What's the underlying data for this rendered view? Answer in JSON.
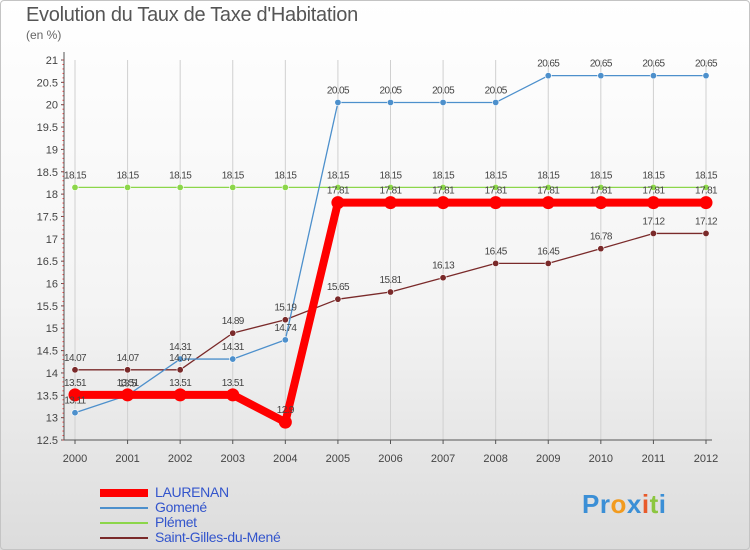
{
  "header": {
    "title": "Evolution du Taux de Taxe d'Habitation",
    "unit": "(en %)"
  },
  "logo": {
    "text": "Proxiti",
    "letters": [
      "P",
      "r",
      "o",
      "x",
      "i",
      "t",
      "i"
    ],
    "letter_colors": [
      "#3b8fd6",
      "#3b8fd6",
      "#f29b1f",
      "#3b8fd6",
      "#e85a2a",
      "#8cc63f",
      "#3b8fd6"
    ]
  },
  "colors": {
    "grid": "#d0d0d0",
    "axis": "#555555",
    "legend_text": "#3355cc"
  },
  "chart_data": {
    "type": "line",
    "title": "Evolution du Taux de Taxe d'Habitation",
    "ylabel": "(en %)",
    "xlabel": "",
    "x": [
      2000,
      2001,
      2002,
      2003,
      2004,
      2005,
      2006,
      2007,
      2008,
      2009,
      2010,
      2011,
      2012
    ],
    "ylim": [
      12.5,
      21
    ],
    "yticks": [
      12.5,
      13,
      13.5,
      14,
      14.5,
      15,
      15.5,
      16,
      16.5,
      17,
      17.5,
      18,
      18.5,
      19,
      19.5,
      20,
      20.5,
      21
    ],
    "grid": "vertical",
    "legend_position": "bottom-left",
    "series": [
      {
        "name": "LAURENAN",
        "color": "#ff0000",
        "line_width": 8,
        "values": [
          13.51,
          13.51,
          13.51,
          13.51,
          12.9,
          17.81,
          17.81,
          17.81,
          17.81,
          17.81,
          17.81,
          17.81,
          17.81
        ],
        "labels": [
          "13.51",
          "13.51",
          "13.51",
          "13.51",
          "12.9",
          "17.81",
          "17.81",
          "17.81",
          "17.81",
          "17.81",
          "17.81",
          "17.81",
          "17.81"
        ]
      },
      {
        "name": "Gomené",
        "color": "#4d90cc",
        "line_width": 1.3,
        "values": [
          13.11,
          13.5,
          14.31,
          14.31,
          14.74,
          20.05,
          20.05,
          20.05,
          20.05,
          20.65,
          20.65,
          20.65,
          20.65
        ],
        "labels": [
          "13.11",
          "13.5",
          "14.31",
          "14.31",
          "14.74",
          "20.05",
          "20.05",
          "20.05",
          "20.05",
          "20.65",
          "20.65",
          "20.65",
          "20.65"
        ]
      },
      {
        "name": "Plémet",
        "color": "#8cd64a",
        "line_width": 1.3,
        "values": [
          18.15,
          18.15,
          18.15,
          18.15,
          18.15,
          18.15,
          18.15,
          18.15,
          18.15,
          18.15,
          18.15,
          18.15,
          18.15
        ],
        "labels": [
          "18.15",
          "18.15",
          "18.15",
          "18.15",
          "18.15",
          "18.15",
          "18.15",
          "18.15",
          "18.15",
          "18.15",
          "18.15",
          "18.15",
          "18.15"
        ]
      },
      {
        "name": "Saint-Gilles-du-Mené",
        "color": "#7a2a2a",
        "line_width": 1.3,
        "values": [
          14.07,
          14.07,
          14.07,
          14.89,
          15.19,
          15.65,
          15.81,
          16.13,
          16.45,
          16.45,
          16.78,
          17.12,
          17.12
        ],
        "labels": [
          "14.07",
          "14.07",
          "14.07",
          "14.89",
          "15.19",
          "15.65",
          "15.81",
          "16.13",
          "16.45",
          "16.45",
          "16.78",
          "17.12",
          "17.12"
        ]
      }
    ]
  }
}
